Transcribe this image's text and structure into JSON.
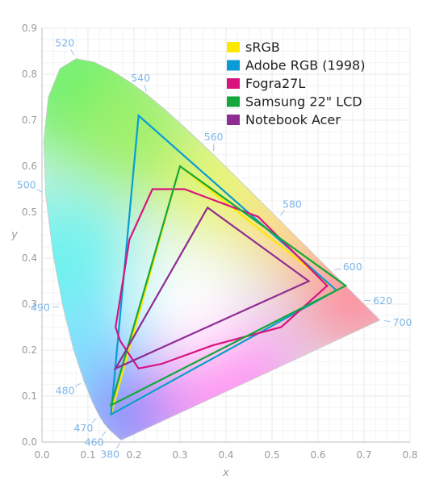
{
  "chart_data": {
    "type": "line",
    "xlabel": "x",
    "ylabel": "y",
    "xlim": [
      0,
      0.8
    ],
    "ylim": [
      0,
      0.9
    ],
    "grid": true,
    "legend_position": "top-right",
    "x_ticks": [
      "0.0",
      "0.1",
      "0.2",
      "0.3",
      "0.4",
      "0.5",
      "0.6",
      "0.7",
      "0.8"
    ],
    "y_ticks": [
      "0.0",
      "0.1",
      "0.2",
      "0.3",
      "0.4",
      "0.5",
      "0.6",
      "0.7",
      "0.8",
      "0.9"
    ],
    "spectral_locus": [
      [
        0.1741,
        0.005
      ],
      [
        0.1738,
        0.0049
      ],
      [
        0.1736,
        0.0049
      ],
      [
        0.1733,
        0.0048
      ],
      [
        0.173,
        0.0048
      ],
      [
        0.1726,
        0.0048
      ],
      [
        0.1721,
        0.0048
      ],
      [
        0.1714,
        0.0051
      ],
      [
        0.1703,
        0.0058
      ],
      [
        0.1689,
        0.0069
      ],
      [
        0.1669,
        0.0086
      ],
      [
        0.1644,
        0.0109
      ],
      [
        0.1611,
        0.0138
      ],
      [
        0.1566,
        0.0177
      ],
      [
        0.151,
        0.0227
      ],
      [
        0.144,
        0.0297
      ],
      [
        0.1355,
        0.0399
      ],
      [
        0.1241,
        0.0578
      ],
      [
        0.1096,
        0.0868
      ],
      [
        0.0913,
        0.1327
      ],
      [
        0.0687,
        0.2007
      ],
      [
        0.0454,
        0.295
      ],
      [
        0.0235,
        0.4127
      ],
      [
        0.0082,
        0.5384
      ],
      [
        0.0039,
        0.6548
      ],
      [
        0.0139,
        0.7502
      ],
      [
        0.0389,
        0.812
      ],
      [
        0.0743,
        0.8338
      ],
      [
        0.1142,
        0.8262
      ],
      [
        0.1547,
        0.8059
      ],
      [
        0.1929,
        0.7816
      ],
      [
        0.2296,
        0.7543
      ],
      [
        0.2658,
        0.7243
      ],
      [
        0.3016,
        0.6923
      ],
      [
        0.3373,
        0.6589
      ],
      [
        0.3731,
        0.6245
      ],
      [
        0.4087,
        0.5896
      ],
      [
        0.4441,
        0.5547
      ],
      [
        0.4788,
        0.5202
      ],
      [
        0.5125,
        0.4866
      ],
      [
        0.5448,
        0.4544
      ],
      [
        0.5752,
        0.4242
      ],
      [
        0.6029,
        0.3965
      ],
      [
        0.627,
        0.3725
      ],
      [
        0.6482,
        0.3514
      ],
      [
        0.6658,
        0.334
      ],
      [
        0.6801,
        0.3197
      ],
      [
        0.6915,
        0.3083
      ],
      [
        0.7006,
        0.2993
      ],
      [
        0.7079,
        0.292
      ],
      [
        0.714,
        0.2859
      ],
      [
        0.719,
        0.2809
      ],
      [
        0.723,
        0.277
      ],
      [
        0.726,
        0.274
      ],
      [
        0.7283,
        0.2717
      ],
      [
        0.73,
        0.27
      ],
      [
        0.7311,
        0.2689
      ],
      [
        0.732,
        0.268
      ],
      [
        0.7327,
        0.2673
      ],
      [
        0.7334,
        0.2666
      ],
      [
        0.734,
        0.266
      ],
      [
        0.7344,
        0.2656
      ],
      [
        0.7346,
        0.2654
      ],
      [
        0.7347,
        0.2653
      ]
    ],
    "wavelength_labels": [
      {
        "label": "380",
        "x": 0.1741,
        "y": 0.005
      },
      {
        "label": "460",
        "x": 0.144,
        "y": 0.0297
      },
      {
        "label": "470",
        "x": 0.1241,
        "y": 0.0578
      },
      {
        "label": "480",
        "x": 0.0913,
        "y": 0.1327
      },
      {
        "label": "490",
        "x": 0.0454,
        "y": 0.295
      },
      {
        "label": "500",
        "x": 0.0082,
        "y": 0.5384
      },
      {
        "label": "520",
        "x": 0.0743,
        "y": 0.8338
      },
      {
        "label": "540",
        "x": 0.2296,
        "y": 0.7543
      },
      {
        "label": "560",
        "x": 0.3731,
        "y": 0.6245
      },
      {
        "label": "580",
        "x": 0.5125,
        "y": 0.4866
      },
      {
        "label": "600",
        "x": 0.627,
        "y": 0.3725
      },
      {
        "label": "620",
        "x": 0.6915,
        "y": 0.3083
      },
      {
        "label": "700",
        "x": 0.7347,
        "y": 0.2653
      }
    ],
    "series": [
      {
        "name": "sRGB",
        "color": "#ffe800",
        "points": [
          [
            0.64,
            0.33
          ],
          [
            0.3,
            0.6
          ],
          [
            0.15,
            0.06
          ]
        ]
      },
      {
        "name": "Adobe RGB (1998)",
        "color": "#0a9bd6",
        "points": [
          [
            0.64,
            0.33
          ],
          [
            0.21,
            0.71
          ],
          [
            0.15,
            0.06
          ]
        ]
      },
      {
        "name": "Fogra27L",
        "color": "#d9137e",
        "points": [
          [
            0.24,
            0.55
          ],
          [
            0.31,
            0.55
          ],
          [
            0.47,
            0.49
          ],
          [
            0.62,
            0.34
          ],
          [
            0.52,
            0.25
          ],
          [
            0.37,
            0.21
          ],
          [
            0.26,
            0.17
          ],
          [
            0.21,
            0.16
          ],
          [
            0.17,
            0.22
          ],
          [
            0.16,
            0.25
          ],
          [
            0.19,
            0.44
          ],
          [
            0.24,
            0.55
          ]
        ]
      },
      {
        "name": "Samsung 22\" LCD",
        "color": "#14a83c",
        "points": [
          [
            0.66,
            0.34
          ],
          [
            0.3,
            0.6
          ],
          [
            0.15,
            0.08
          ]
        ]
      },
      {
        "name": "Notebook Acer",
        "color": "#8e2c94",
        "points": [
          [
            0.58,
            0.35
          ],
          [
            0.36,
            0.51
          ],
          [
            0.16,
            0.16
          ]
        ]
      }
    ]
  }
}
